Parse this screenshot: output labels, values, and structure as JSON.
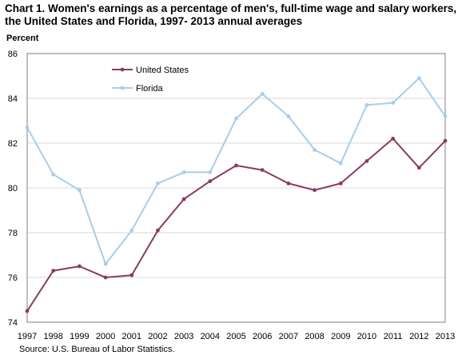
{
  "chart_data": {
    "type": "line",
    "title": "Chart 1. Women's earnings as a percentage of men's, full-time wage and salary workers, the United States and Florida, 1997- 2013  annual averages",
    "ylabel": "Percent",
    "xlabel": "",
    "source": "Source: U.S. Bureau of Labor Statistics.",
    "ylim": [
      74,
      86
    ],
    "yticks": [
      "74",
      "76",
      "78",
      "80",
      "82",
      "84",
      "86"
    ],
    "grid": true,
    "legend_position": "top-left",
    "x": [
      "1997",
      "1998",
      "1999",
      "2000",
      "2001",
      "2002",
      "2003",
      "2004",
      "2005",
      "2006",
      "2007",
      "2008",
      "2009",
      "2010",
      "2011",
      "2012",
      "2013"
    ],
    "series": [
      {
        "name": "United States",
        "color": "#8b3a62",
        "values": [
          74.5,
          76.3,
          76.5,
          76.0,
          76.1,
          78.1,
          79.5,
          80.3,
          81.0,
          80.8,
          80.2,
          79.9,
          80.2,
          81.2,
          82.2,
          80.9,
          82.1
        ]
      },
      {
        "name": "Florida",
        "color": "#a7cdee",
        "values": [
          82.7,
          80.6,
          79.9,
          76.6,
          78.1,
          80.2,
          80.7,
          80.7,
          83.1,
          84.2,
          83.2,
          81.7,
          81.1,
          83.7,
          83.8,
          84.9,
          83.2
        ]
      }
    ]
  }
}
